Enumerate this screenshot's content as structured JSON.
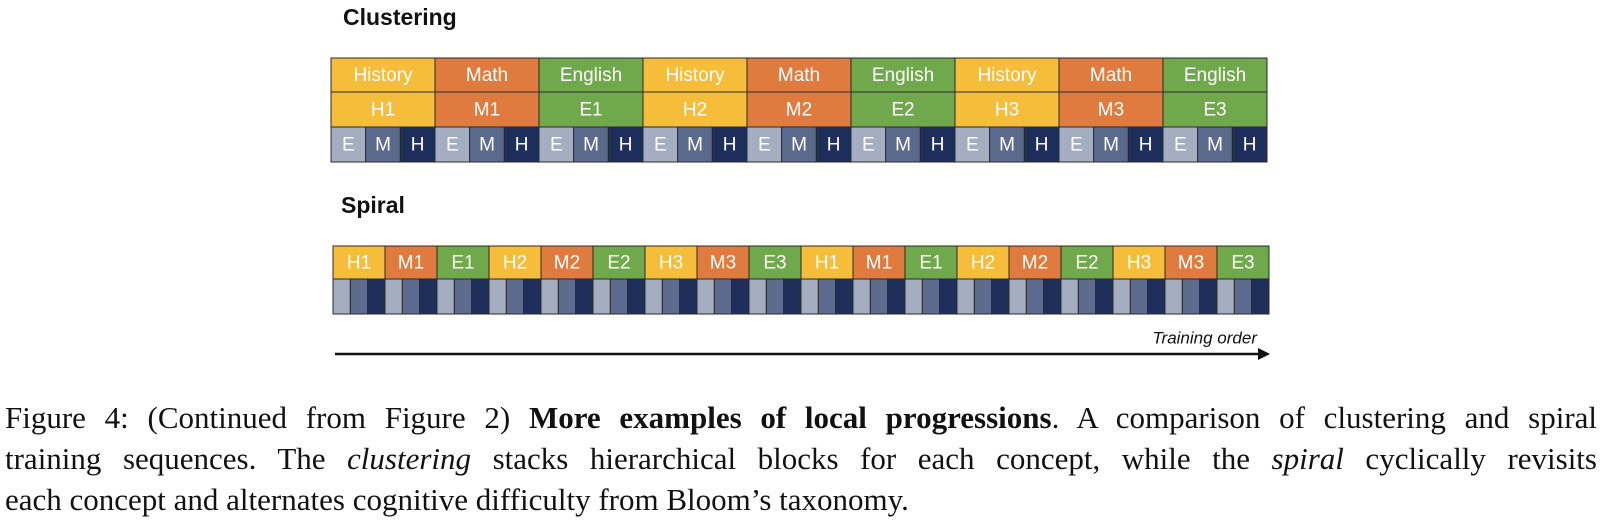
{
  "clustering": {
    "title": "Clustering",
    "columns": [
      {
        "subject": "History",
        "unit": "H1",
        "levels": [
          "E",
          "M",
          "H"
        ]
      },
      {
        "subject": "Math",
        "unit": "M1",
        "levels": [
          "E",
          "M",
          "H"
        ]
      },
      {
        "subject": "English",
        "unit": "E1",
        "levels": [
          "E",
          "M",
          "H"
        ]
      },
      {
        "subject": "History",
        "unit": "H2",
        "levels": [
          "E",
          "M",
          "H"
        ]
      },
      {
        "subject": "Math",
        "unit": "M2",
        "levels": [
          "E",
          "M",
          "H"
        ]
      },
      {
        "subject": "English",
        "unit": "E2",
        "levels": [
          "E",
          "M",
          "H"
        ]
      },
      {
        "subject": "History",
        "unit": "H3",
        "levels": [
          "E",
          "M",
          "H"
        ]
      },
      {
        "subject": "Math",
        "unit": "M3",
        "levels": [
          "E",
          "M",
          "H"
        ]
      },
      {
        "subject": "English",
        "unit": "E3",
        "levels": [
          "E",
          "M",
          "H"
        ]
      }
    ]
  },
  "spiral": {
    "title": "Spiral",
    "units": [
      "H1",
      "M1",
      "E1",
      "H2",
      "M2",
      "E2",
      "H3",
      "M3",
      "E3",
      "H1",
      "M1",
      "E1",
      "H2",
      "M2",
      "E2",
      "H3",
      "M3",
      "E3"
    ]
  },
  "training_order_label": "Training order",
  "caption": {
    "lines": [
      [
        {
          "text": "Figure 4: (Continued from Figure 2) ",
          "style": "normal"
        },
        {
          "text": "More examples of local progressions",
          "style": "bold"
        },
        {
          "text": ". A comparison of clustering and spiral",
          "style": "normal"
        }
      ],
      [
        {
          "text": "training sequences. The ",
          "style": "normal"
        },
        {
          "text": "clustering",
          "style": "italic"
        },
        {
          "text": " stacks hierarchical blocks for each concept, while the ",
          "style": "normal"
        },
        {
          "text": "spiral",
          "style": "italic"
        },
        {
          "text": " cyclically revisits",
          "style": "normal"
        }
      ],
      [
        {
          "text": "each concept and alternates cognitive difficulty from Bloom’s taxonomy.",
          "style": "normal"
        }
      ]
    ]
  }
}
